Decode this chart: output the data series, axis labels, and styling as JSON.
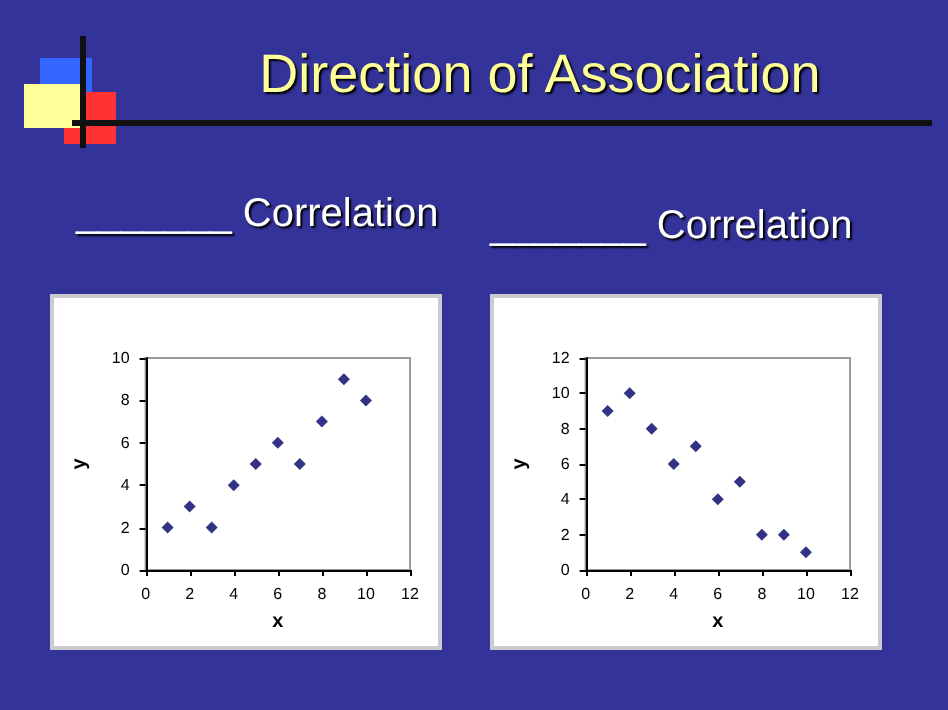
{
  "chart_data": [
    {
      "type": "scatter",
      "title": "_______ Correlation",
      "annotations": [
        "Direction of Association"
      ],
      "xlabel": "x",
      "ylabel": "y",
      "x": [
        1,
        2,
        3,
        4,
        5,
        6,
        7,
        8,
        9,
        10
      ],
      "values": [
        2,
        3,
        2,
        4,
        5,
        6,
        5,
        7,
        9,
        8
      ],
      "color": "#000066",
      "xlim": [
        0,
        12
      ],
      "xticks": [
        0,
        2,
        4,
        6,
        8,
        10,
        12
      ],
      "ylim": [
        0,
        10
      ],
      "yticks": [
        0,
        2,
        4,
        6,
        8,
        10
      ],
      "marker": "diamond",
      "grid": false
    },
    {
      "type": "scatter",
      "title": "_______ Correlation",
      "xlabel": "x",
      "ylabel": "y",
      "x": [
        1,
        2,
        3,
        4,
        5,
        6,
        7,
        8,
        9,
        10
      ],
      "values": [
        9,
        10,
        8,
        6,
        7,
        4,
        5,
        2,
        2,
        1
      ],
      "color": "#000066",
      "xlim": [
        0,
        12
      ],
      "xticks": [
        0,
        2,
        4,
        6,
        8,
        10,
        12
      ],
      "ylim": [
        0,
        12
      ],
      "yticks": [
        0,
        2,
        4,
        6,
        8,
        10,
        12
      ],
      "marker": "diamond",
      "grid": false
    }
  ]
}
